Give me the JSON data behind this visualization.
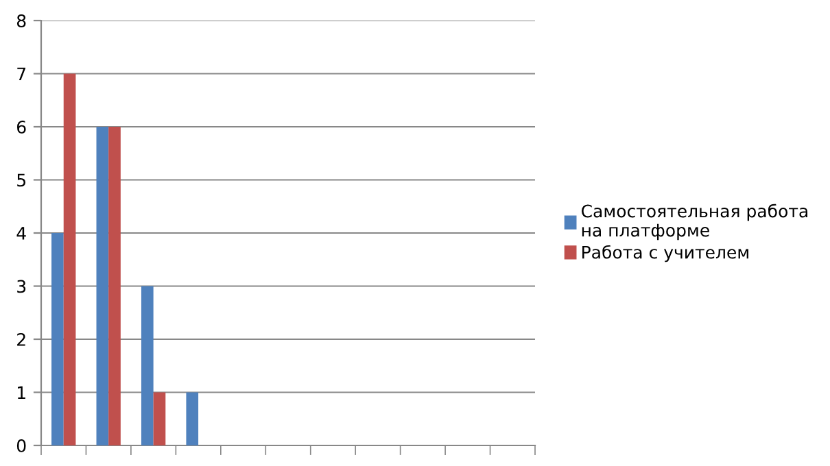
{
  "chart_data": {
    "type": "bar",
    "categories": [
      null,
      null,
      null,
      null,
      null,
      null,
      null,
      null,
      null,
      null,
      null
    ],
    "series": [
      {
        "name": "Самостоятельная работа\nна платформе",
        "color": "#4f81bd",
        "values": [
          4,
          6,
          3,
          1,
          0,
          0,
          0,
          0,
          0,
          0,
          0
        ]
      },
      {
        "name": "Работа с учителем",
        "color": "#c0504d",
        "values": [
          7,
          6,
          1,
          0,
          0,
          0,
          0,
          0,
          0,
          0,
          0
        ]
      }
    ],
    "ylim": [
      0,
      8
    ],
    "yticks": [
      0,
      1,
      2,
      3,
      4,
      5,
      6,
      7,
      8
    ],
    "grid": "y",
    "legend": "right"
  }
}
